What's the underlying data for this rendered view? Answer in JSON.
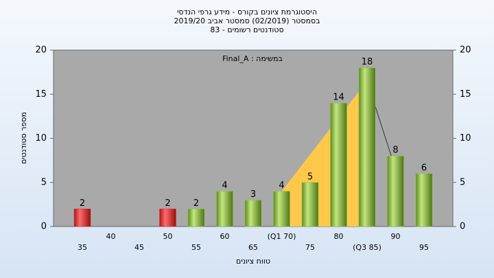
{
  "chart_data": {
    "type": "bar",
    "title": [
      "היסטוגרמת ציונים בקורס - מידע גרפי הנדסי",
      "בסמסטר  (02/2019)  סמסטר אביב 2019/20",
      "סטודנטים רשומים - 83"
    ],
    "annotation": "במשימה : Final_A",
    "xlabel": "טווח ציונים",
    "ylabel": "מספר סטודנטים",
    "categories": [
      "35",
      "40",
      "45",
      "50",
      "55",
      "60",
      "65",
      "(Q1 70)",
      "75",
      "80",
      "(Q3 85)",
      "90",
      "95"
    ],
    "values": [
      2,
      null,
      null,
      2,
      2,
      4,
      3,
      4,
      5,
      14,
      18,
      8,
      6
    ],
    "colors": [
      "#e03535",
      null,
      null,
      "#e03535",
      "#8dc63f",
      "#8dc63f",
      "#8dc63f",
      "#8dc63f",
      "#8dc63f",
      "#8dc63f",
      "#8dc63f",
      "#8dc63f",
      "#8dc63f"
    ],
    "band": {
      "color": "#ffc84a",
      "x": [
        7,
        10
      ],
      "values": [
        4,
        16.5
      ]
    },
    "trend": {
      "color": "#333333",
      "x": [
        10,
        11
      ],
      "values": [
        16.5,
        6.5
      ]
    },
    "ylim": [
      0,
      20
    ],
    "yticks": [
      0,
      5,
      10,
      15,
      20
    ],
    "y2lim": [
      0,
      20
    ],
    "y2ticks": [
      0,
      5,
      10,
      15,
      20
    ],
    "grid": false
  }
}
